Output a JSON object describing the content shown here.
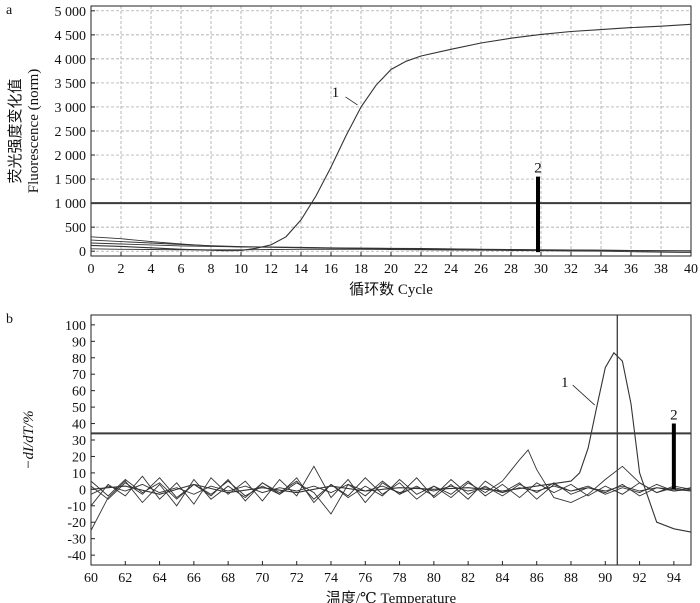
{
  "chart_data": [
    {
      "panel": "a",
      "type": "line",
      "title": "",
      "xlabel": "循环数 Cycle",
      "ylabel": [
        "荧光强度变化值",
        "Fluorescence (norm)"
      ],
      "xlim": [
        0,
        40
      ],
      "ylim": [
        -100,
        5100
      ],
      "xticks": [
        0,
        2,
        4,
        6,
        8,
        10,
        12,
        14,
        16,
        18,
        20,
        22,
        24,
        26,
        28,
        30,
        32,
        34,
        36,
        38,
        40
      ],
      "yticks": [
        0,
        500,
        1000,
        1500,
        2000,
        2500,
        3000,
        3500,
        4000,
        4500,
        5000
      ],
      "ytick_labels": [
        "0",
        "500",
        "1 000",
        "1 500",
        "2 000",
        "2 500",
        "3 000",
        "3 500",
        "4 000",
        "4 500",
        "5 000"
      ],
      "grid": true,
      "threshold": 1000,
      "series": [
        {
          "label": "1",
          "x": [
            0,
            2,
            4,
            6,
            8,
            9,
            10,
            11,
            12,
            13,
            14,
            15,
            16,
            17,
            18,
            19,
            20,
            21,
            22,
            24,
            26,
            28,
            30,
            32,
            34,
            36,
            38,
            40
          ],
          "y": [
            120,
            100,
            70,
            40,
            20,
            10,
            15,
            60,
            130,
            300,
            650,
            1150,
            1750,
            2400,
            3000,
            3450,
            3780,
            3950,
            4060,
            4200,
            4330,
            4430,
            4510,
            4570,
            4610,
            4650,
            4680,
            4720
          ]
        },
        {
          "x": [
            0,
            2,
            4,
            6,
            8,
            10,
            12,
            14,
            16,
            18,
            20,
            22,
            24,
            26,
            28,
            30,
            32,
            34,
            36,
            38,
            40
          ],
          "y": [
            300,
            260,
            200,
            150,
            110,
            90,
            80,
            70,
            60,
            55,
            50,
            45,
            40,
            35,
            30,
            25,
            20,
            15,
            10,
            5,
            0
          ]
        },
        {
          "x": [
            0,
            2,
            4,
            6,
            8,
            10,
            12,
            14,
            16,
            18,
            20,
            22,
            24,
            26,
            28,
            30,
            32,
            34,
            36,
            38,
            40
          ],
          "y": [
            230,
            200,
            170,
            140,
            115,
            95,
            85,
            75,
            65,
            60,
            55,
            50,
            45,
            40,
            35,
            30,
            25,
            20,
            15,
            10,
            5
          ]
        },
        {
          "x": [
            0,
            2,
            4,
            6,
            8,
            10,
            12,
            14,
            16,
            18,
            20,
            22,
            24,
            26,
            28,
            30,
            32,
            34,
            36,
            38,
            40
          ],
          "y": [
            170,
            150,
            130,
            110,
            100,
            90,
            85,
            80,
            70,
            65,
            60,
            55,
            50,
            40,
            35,
            30,
            25,
            20,
            15,
            10,
            10
          ]
        },
        {
          "x": [
            0,
            2,
            4,
            6,
            8,
            10,
            12,
            14,
            16,
            18,
            20,
            22,
            24,
            26,
            28,
            30,
            32,
            34,
            36,
            38,
            40
          ],
          "y": [
            50,
            40,
            35,
            30,
            30,
            30,
            35,
            40,
            40,
            40,
            35,
            30,
            25,
            20,
            15,
            10,
            5,
            0,
            -10,
            -20,
            -30
          ]
        }
      ],
      "markers": [
        {
          "label": "2",
          "x": 29.8,
          "y_from": -20,
          "y_to": 1550
        }
      ]
    },
    {
      "panel": "b",
      "type": "line",
      "title": "",
      "xlabel": "温度/℃ Temperature",
      "ylabel": "−dI/dT/%",
      "xlim": [
        60,
        95
      ],
      "ylim": [
        -46,
        106
      ],
      "xticks": [
        60,
        62,
        64,
        66,
        68,
        70,
        72,
        74,
        76,
        78,
        80,
        82,
        84,
        86,
        88,
        90,
        92,
        94
      ],
      "yticks": [
        -40,
        -30,
        -20,
        -10,
        0,
        10,
        20,
        30,
        40,
        50,
        60,
        70,
        80,
        90,
        100
      ],
      "grid": false,
      "threshold": 34,
      "vertical_line": 90.7,
      "series": [
        {
          "label": "1",
          "x": [
            60,
            62,
            64,
            66,
            68,
            70,
            72,
            74,
            76,
            78,
            80,
            82,
            84,
            86,
            88,
            88.5,
            89,
            89.5,
            90,
            90.5,
            91,
            91.5,
            92,
            93,
            94,
            95
          ],
          "y": [
            0,
            2,
            -3,
            3,
            -2,
            1,
            -2,
            2,
            -1,
            1,
            0,
            1,
            -1,
            2,
            5,
            10,
            25,
            50,
            74,
            83,
            78,
            52,
            10,
            -20,
            -24,
            -26
          ]
        },
        {
          "x": [
            60,
            61,
            62,
            63,
            64,
            65,
            66,
            67,
            68,
            69,
            70,
            71,
            72,
            73,
            74,
            75,
            76,
            77,
            78,
            79,
            80,
            81,
            82,
            83,
            84,
            85,
            85.5,
            86,
            87,
            88,
            89,
            90,
            91,
            92,
            93,
            94,
            95
          ],
          "y": [
            -25,
            -5,
            5,
            -8,
            3,
            -10,
            6,
            -6,
            2,
            -5,
            4,
            -3,
            7,
            -8,
            3,
            -5,
            2,
            -4,
            6,
            -3,
            2,
            -5,
            4,
            -2,
            5,
            18,
            24,
            12,
            -5,
            -8,
            -3,
            6,
            14,
            4,
            -2,
            2,
            0
          ]
        },
        {
          "x": [
            60,
            61,
            62,
            63,
            64,
            65,
            66,
            67,
            68,
            69,
            70,
            71,
            72,
            73,
            74,
            75,
            76,
            77,
            78,
            79,
            80,
            81,
            82,
            83,
            84,
            85,
            86,
            87,
            88,
            89,
            90,
            91,
            92,
            93,
            94,
            95
          ],
          "y": [
            -10,
            3,
            -4,
            8,
            -6,
            4,
            -9,
            7,
            -3,
            5,
            -7,
            6,
            -4,
            14,
            -5,
            6,
            -8,
            4,
            -3,
            7,
            -5,
            3,
            -6,
            5,
            -2,
            4,
            -6,
            3,
            -1,
            2,
            -3,
            1,
            -2,
            3,
            -1,
            1
          ]
        },
        {
          "x": [
            60,
            61,
            62,
            63,
            64,
            65,
            66,
            67,
            68,
            69,
            70,
            71,
            72,
            73,
            74,
            75,
            76,
            77,
            78,
            79,
            80,
            81,
            82,
            83,
            84,
            85,
            86,
            87,
            88,
            89,
            90,
            91,
            92,
            93,
            94,
            95
          ],
          "y": [
            5,
            -4,
            6,
            -2,
            4,
            -6,
            3,
            -3,
            5,
            -4,
            2,
            -3,
            4,
            -2,
            -15,
            3,
            -4,
            5,
            -3,
            2,
            -4,
            6,
            -3,
            2,
            -4,
            3,
            -2,
            4,
            -3,
            1,
            -2,
            3,
            -4,
            1,
            0,
            -1
          ]
        },
        {
          "x": [
            60,
            61,
            62,
            63,
            64,
            65,
            66,
            67,
            68,
            69,
            70,
            71,
            72,
            73,
            74,
            75,
            76,
            77,
            78,
            79,
            80,
            81,
            82,
            83,
            84,
            85,
            86,
            87,
            88,
            89,
            90,
            91,
            92,
            93,
            94,
            95
          ],
          "y": [
            -3,
            2,
            -1,
            3,
            -2,
            1,
            -3,
            2,
            -1,
            2,
            -2,
            1,
            -1,
            2,
            -2,
            3,
            -1,
            2,
            -2,
            1,
            -1,
            2,
            -1,
            1,
            -2,
            1,
            -1,
            2,
            -1,
            1,
            -1,
            2,
            -1,
            1,
            -1,
            0
          ]
        },
        {
          "x": [
            60,
            61,
            62,
            63,
            64,
            65,
            66,
            67,
            68,
            69,
            70,
            71,
            72,
            73,
            74,
            75,
            76,
            77,
            78,
            79,
            80,
            81,
            82,
            83,
            84,
            85,
            86,
            87,
            88,
            89,
            90,
            91,
            92,
            93,
            94,
            95
          ],
          "y": [
            2,
            -6,
            4,
            -3,
            7,
            -5,
            3,
            -4,
            6,
            -7,
            4,
            -2,
            5,
            -6,
            3,
            -4,
            7,
            -3,
            4,
            -6,
            2,
            -3,
            5,
            -4,
            3,
            -5,
            4,
            -2,
            3,
            -4,
            2,
            -3,
            4,
            -2,
            1,
            -1
          ]
        }
      ],
      "markers": [
        {
          "label": "2",
          "x": 94.0,
          "y_from": 0,
          "y_to": 40
        }
      ]
    }
  ],
  "colors": {
    "curve": "#333333",
    "grid": "#9a9a9a",
    "threshold": "#3a3a3a",
    "marker": "#000000"
  }
}
